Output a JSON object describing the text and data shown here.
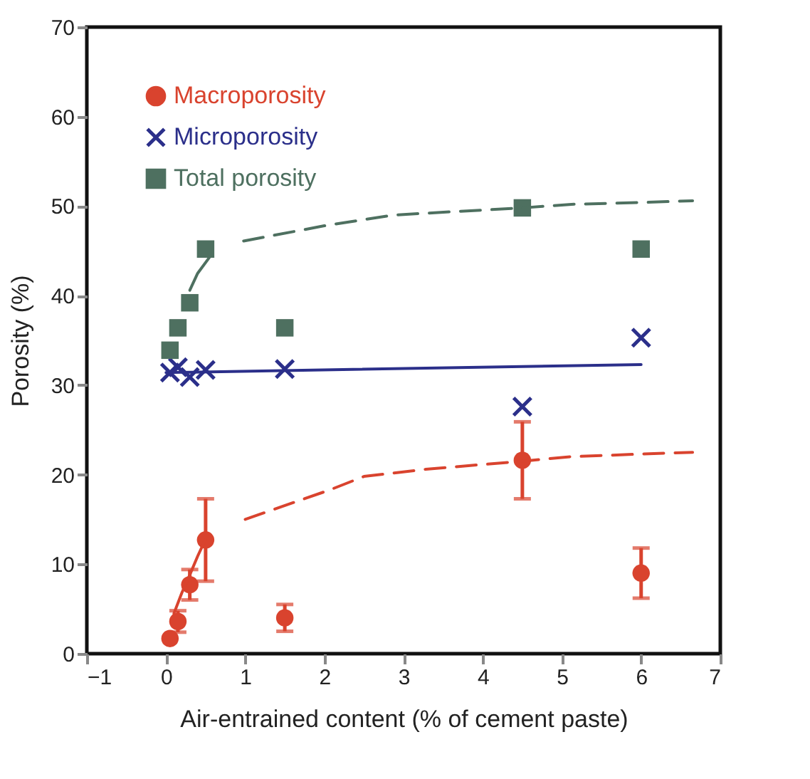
{
  "chart_data": {
    "type": "scatter",
    "xlabel": "Air-entrained content (% of cement paste)",
    "ylabel": "Porosity (%)",
    "xlim": [
      -1,
      7
    ],
    "xticks": [
      -1,
      0,
      1,
      2,
      3,
      4,
      5,
      6,
      7
    ],
    "ylim": [
      0,
      70
    ],
    "yticks": [
      0,
      10,
      20,
      30,
      40,
      50,
      60,
      70
    ],
    "grid": false,
    "legend": "top left",
    "series": [
      {
        "name": "Macroporosity",
        "marker": "circle",
        "color": "#d9432e",
        "x": [
          0.05,
          0.15,
          0.3,
          0.5,
          1.5,
          4.5,
          6
        ],
        "values": [
          1.7,
          3.6,
          7.7,
          12.7,
          4.0,
          21.6,
          9.0
        ],
        "errors": [
          null,
          1.2,
          1.7,
          4.6,
          1.5,
          4.3,
          2.8
        ]
      },
      {
        "name": "Microporosity",
        "marker": "cross",
        "color": "#2b2f8a",
        "x": [
          0.05,
          0.15,
          0.3,
          0.5,
          1.5,
          4.5,
          6
        ],
        "values": [
          31.4,
          32.0,
          30.9,
          31.7,
          31.8,
          27.6,
          35.3
        ]
      },
      {
        "name": "Total porosity",
        "marker": "square",
        "color": "#4e7060",
        "x": [
          0.05,
          0.15,
          0.3,
          0.5,
          1.5,
          4.5,
          6
        ],
        "values": [
          33.9,
          36.4,
          39.2,
          45.2,
          36.4,
          49.8,
          45.2
        ]
      },
      {
        "type": "line",
        "color": "#2b2f8a",
        "line_style": "solid",
        "x": [
          0,
          6
        ],
        "values": [
          31.4,
          32.3
        ]
      },
      {
        "type": "line",
        "color": "#d9432e",
        "line_style": "solid",
        "x": [
          0.1,
          0.2,
          0.3,
          0.4,
          0.5
        ],
        "values": [
          4.5,
          6.8,
          8.8,
          10.9,
          12.8
        ]
      },
      {
        "type": "line",
        "color": "#d9432e",
        "line_style": "dashed",
        "x": [
          1.0,
          2.07,
          2.5,
          3.28,
          4.5,
          5.1,
          6.0,
          6.65
        ],
        "values": [
          15.0,
          18.3,
          19.8,
          20.6,
          21.5,
          22.0,
          22.3,
          22.5
        ]
      },
      {
        "type": "line",
        "color": "#4e7060",
        "line_style": "solid",
        "x": [
          0.3,
          0.4,
          0.55
        ],
        "values": [
          40.6,
          42.5,
          44.3
        ]
      },
      {
        "type": "line",
        "color": "#4e7060",
        "line_style": "dashed",
        "x": [
          0.98,
          2.0,
          2.87,
          3.67,
          4.5,
          5.12,
          6.0,
          6.65
        ],
        "values": [
          46.1,
          47.8,
          49.0,
          49.4,
          49.8,
          50.2,
          50.4,
          50.6
        ]
      }
    ]
  }
}
